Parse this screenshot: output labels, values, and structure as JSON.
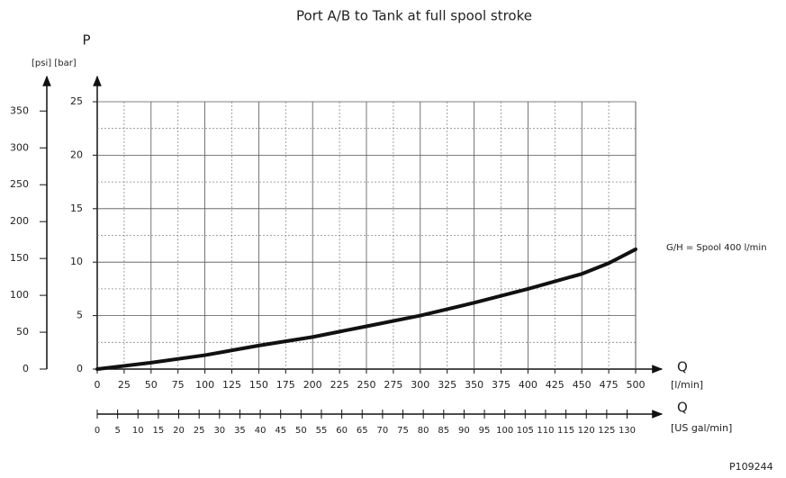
{
  "chart_data": {
    "type": "line",
    "title": "Port A/B to Tank at full spool stroke",
    "y_label": "P",
    "y_units": "[psi] [bar]",
    "x_label": "Q",
    "x_units": "[l/min]",
    "x2_label": "Q",
    "x2_units": "[US gal/min]",
    "figure_id": "P109244",
    "x": [
      0,
      50,
      100,
      150,
      200,
      250,
      300,
      350,
      400,
      450,
      475,
      500
    ],
    "series": [
      {
        "name": "G/H = Spool 400 l/min",
        "color": "#111111",
        "values": [
          0,
          0.6,
          1.3,
          2.2,
          3.0,
          4.0,
          5.0,
          6.2,
          7.5,
          8.9,
          9.9,
          11.2
        ]
      }
    ],
    "xlim": [
      0,
      500
    ],
    "xticks": [
      0,
      25,
      50,
      75,
      100,
      125,
      150,
      175,
      200,
      225,
      250,
      275,
      300,
      325,
      350,
      375,
      400,
      425,
      450,
      475,
      500
    ],
    "ylim": [
      0,
      25
    ],
    "yticks": [
      0,
      5,
      10,
      15,
      20,
      25
    ],
    "yminorticks": [
      2.5,
      7.5,
      12.5,
      17.5,
      22.5
    ],
    "y2lim": [
      0,
      362.6
    ],
    "y2ticks": [
      0,
      50,
      100,
      150,
      200,
      250,
      300,
      350
    ],
    "x2lim": [
      0,
      132.1
    ],
    "x2ticks": [
      0,
      5,
      10,
      15,
      20,
      25,
      30,
      35,
      40,
      45,
      50,
      55,
      60,
      65,
      70,
      75,
      80,
      85,
      90,
      95,
      100,
      105,
      110,
      115,
      120,
      125,
      130
    ],
    "grid": true
  }
}
